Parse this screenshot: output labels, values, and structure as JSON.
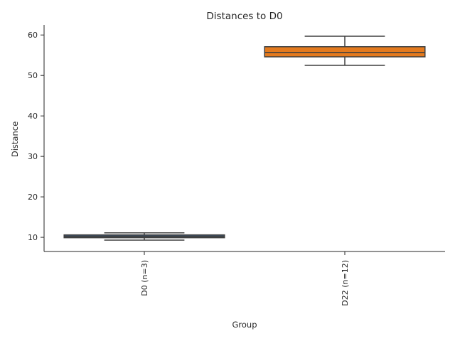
{
  "chart_data": {
    "type": "box",
    "title": "Distances to D0",
    "xlabel": "Group",
    "ylabel": "Distance",
    "ylim": [
      6.5,
      62.5
    ],
    "yticks": [
      10,
      20,
      30,
      40,
      50,
      60
    ],
    "grid": false,
    "legend": "none",
    "categories": [
      "D0 (n=3)",
      "D22 (n=12)"
    ],
    "boxes": [
      {
        "category": "D0 (n=3)",
        "whisker_low": 9.3,
        "q1": 9.9,
        "median": 10.2,
        "q3": 10.6,
        "whisker_high": 11.1,
        "color": "#3a4f66"
      },
      {
        "category": "D22 (n=12)",
        "whisker_low": 52.5,
        "q1": 54.6,
        "median": 55.7,
        "q3": 57.1,
        "whisker_high": 59.7,
        "color": "#e47a1e"
      }
    ],
    "line_color": "#3f3f3f"
  }
}
